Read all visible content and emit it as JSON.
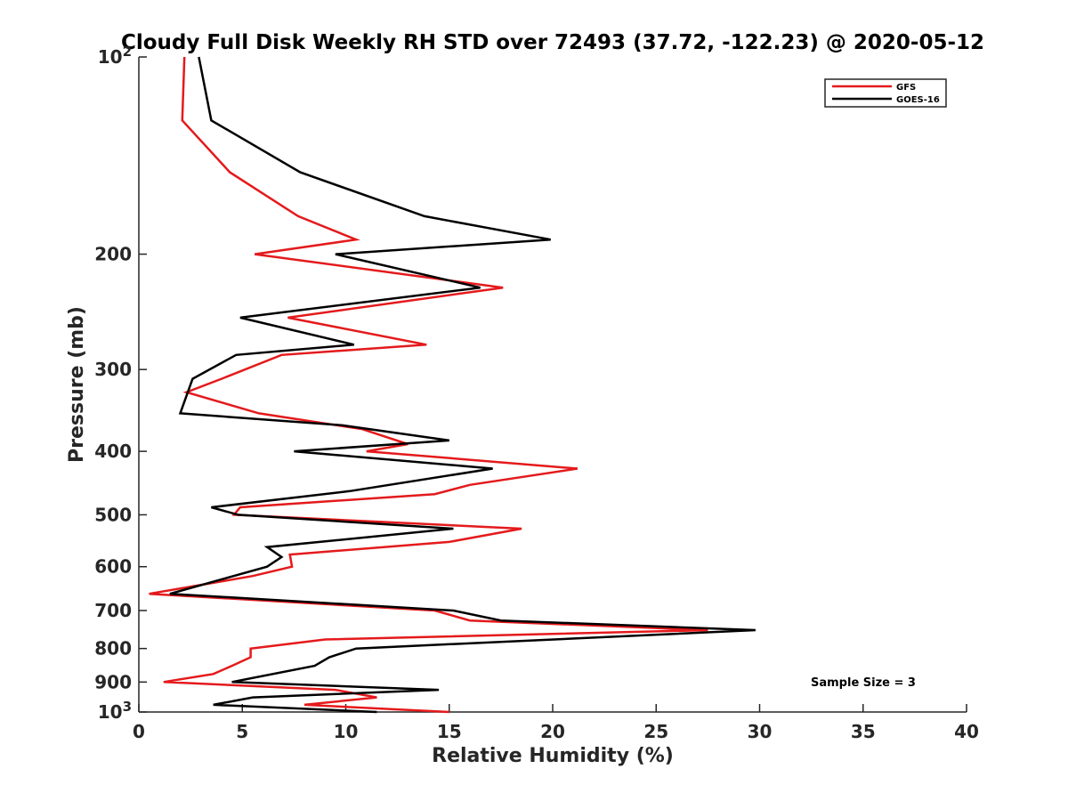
{
  "chart_data": {
    "type": "line",
    "title": "Cloudy Full Disk Weekly RH STD over 72493 (37.72, -122.23) @ 2020-05-12",
    "xlabel": "Relative Humidity (%)",
    "ylabel": "Pressure (mb)",
    "xlim": [
      0,
      40
    ],
    "ylim": [
      100,
      1000
    ],
    "y_scale": "log",
    "y_reversed": true,
    "grid": false,
    "legend_position": "top-right",
    "x_ticks": [
      "0",
      "5",
      "10",
      "15",
      "20",
      "25",
      "30",
      "35",
      "40"
    ],
    "y_ticks": [
      {
        "value": 100,
        "base": "10",
        "exp": "2"
      },
      {
        "value": 200,
        "label": "200"
      },
      {
        "value": 300,
        "label": "300"
      },
      {
        "value": 400,
        "label": "400"
      },
      {
        "value": 500,
        "label": "500"
      },
      {
        "value": 600,
        "label": "600"
      },
      {
        "value": 700,
        "label": "700"
      },
      {
        "value": 800,
        "label": "800"
      },
      {
        "value": 900,
        "label": "900"
      },
      {
        "value": 1000,
        "base": "10",
        "exp": "3"
      }
    ],
    "annotation": "Sample Size = 3",
    "series": [
      {
        "name": "GFS",
        "color": "#e41a1c",
        "points": [
          {
            "x": 2.2,
            "y": 100
          },
          {
            "x": 2.1,
            "y": 125
          },
          {
            "x": 4.4,
            "y": 150
          },
          {
            "x": 7.7,
            "y": 175
          },
          {
            "x": 10.5,
            "y": 190
          },
          {
            "x": 5.6,
            "y": 200
          },
          {
            "x": 17.6,
            "y": 225
          },
          {
            "x": 7.2,
            "y": 250
          },
          {
            "x": 13.9,
            "y": 275
          },
          {
            "x": 6.9,
            "y": 285
          },
          {
            "x": 4.0,
            "y": 310
          },
          {
            "x": 2.3,
            "y": 325
          },
          {
            "x": 5.8,
            "y": 350
          },
          {
            "x": 10.8,
            "y": 370
          },
          {
            "x": 13.0,
            "y": 390
          },
          {
            "x": 11.0,
            "y": 400
          },
          {
            "x": 21.2,
            "y": 425
          },
          {
            "x": 16.0,
            "y": 450
          },
          {
            "x": 14.3,
            "y": 465
          },
          {
            "x": 4.9,
            "y": 487
          },
          {
            "x": 4.6,
            "y": 500
          },
          {
            "x": 18.5,
            "y": 525
          },
          {
            "x": 15.0,
            "y": 550
          },
          {
            "x": 7.3,
            "y": 575
          },
          {
            "x": 7.4,
            "y": 600
          },
          {
            "x": 5.5,
            "y": 620
          },
          {
            "x": 0.5,
            "y": 660
          },
          {
            "x": 14.3,
            "y": 700
          },
          {
            "x": 16.0,
            "y": 725
          },
          {
            "x": 27.5,
            "y": 750
          },
          {
            "x": 9.0,
            "y": 775
          },
          {
            "x": 5.4,
            "y": 800
          },
          {
            "x": 5.4,
            "y": 825
          },
          {
            "x": 4.5,
            "y": 850
          },
          {
            "x": 3.6,
            "y": 875
          },
          {
            "x": 1.2,
            "y": 900
          },
          {
            "x": 9.5,
            "y": 925
          },
          {
            "x": 11.5,
            "y": 950
          },
          {
            "x": 8.0,
            "y": 975
          },
          {
            "x": 15.0,
            "y": 1000
          }
        ]
      },
      {
        "name": "GOES-16",
        "color": "#000000",
        "points": [
          {
            "x": 2.9,
            "y": 100
          },
          {
            "x": 3.5,
            "y": 125
          },
          {
            "x": 7.8,
            "y": 150
          },
          {
            "x": 13.8,
            "y": 175
          },
          {
            "x": 19.9,
            "y": 190
          },
          {
            "x": 9.5,
            "y": 200
          },
          {
            "x": 16.5,
            "y": 225
          },
          {
            "x": 4.9,
            "y": 250
          },
          {
            "x": 10.4,
            "y": 275
          },
          {
            "x": 4.7,
            "y": 285
          },
          {
            "x": 2.6,
            "y": 310
          },
          {
            "x": 2.0,
            "y": 350
          },
          {
            "x": 9.8,
            "y": 365
          },
          {
            "x": 15.0,
            "y": 385
          },
          {
            "x": 7.5,
            "y": 400
          },
          {
            "x": 17.1,
            "y": 425
          },
          {
            "x": 10.2,
            "y": 460
          },
          {
            "x": 3.5,
            "y": 487
          },
          {
            "x": 4.8,
            "y": 500
          },
          {
            "x": 15.2,
            "y": 525
          },
          {
            "x": 6.2,
            "y": 560
          },
          {
            "x": 6.9,
            "y": 580
          },
          {
            "x": 6.2,
            "y": 600
          },
          {
            "x": 1.5,
            "y": 660
          },
          {
            "x": 15.2,
            "y": 700
          },
          {
            "x": 17.5,
            "y": 725
          },
          {
            "x": 29.8,
            "y": 750
          },
          {
            "x": 10.5,
            "y": 800
          },
          {
            "x": 9.2,
            "y": 825
          },
          {
            "x": 8.5,
            "y": 850
          },
          {
            "x": 4.5,
            "y": 900
          },
          {
            "x": 14.5,
            "y": 925
          },
          {
            "x": 5.5,
            "y": 950
          },
          {
            "x": 3.6,
            "y": 975
          },
          {
            "x": 11.5,
            "y": 1000
          }
        ]
      }
    ]
  }
}
